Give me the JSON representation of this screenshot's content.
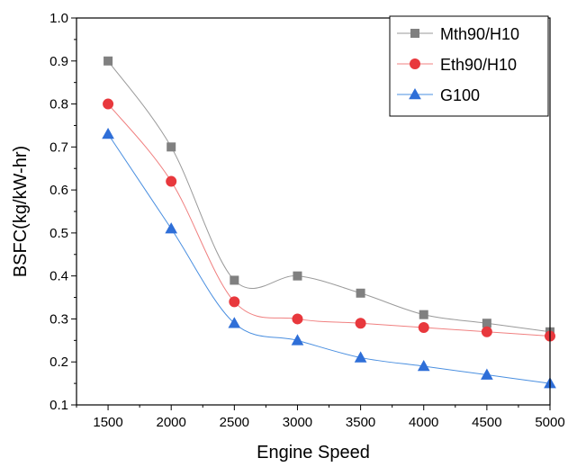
{
  "chart_data": {
    "type": "line",
    "title": "",
    "xlabel": "Engine Speed",
    "ylabel": "BSFC(kg/kW-hr)",
    "x": [
      1500,
      2000,
      2500,
      3000,
      3500,
      4000,
      4500,
      5000
    ],
    "x_ticks": [
      "1500",
      "2000",
      "2500",
      "3000",
      "3500",
      "4000",
      "4500",
      "5000"
    ],
    "xlim": [
      1250,
      5000
    ],
    "ylim": [
      0.1,
      1.0
    ],
    "y_ticks": [
      "0.1",
      "0.2",
      "0.3",
      "0.4",
      "0.5",
      "0.6",
      "0.7",
      "0.8",
      "0.9",
      "1.0"
    ],
    "grid": false,
    "legend_position": "top-right",
    "series": [
      {
        "name": "Mth90/H10",
        "color": "#808080",
        "line_color": "#9a9a9a",
        "marker": "square",
        "values": [
          0.9,
          0.7,
          0.39,
          0.4,
          0.36,
          0.31,
          0.29,
          0.27
        ]
      },
      {
        "name": "Eth90/H10",
        "color": "#e8383d",
        "line_color": "#f08080",
        "marker": "circle",
        "values": [
          0.8,
          0.62,
          0.34,
          0.3,
          0.29,
          0.28,
          0.27,
          0.26
        ]
      },
      {
        "name": "G100",
        "color": "#2f6fd8",
        "line_color": "#4a8fe0",
        "marker": "triangle",
        "values": [
          0.73,
          0.51,
          0.29,
          0.25,
          0.21,
          0.19,
          0.17,
          0.15
        ]
      }
    ]
  }
}
